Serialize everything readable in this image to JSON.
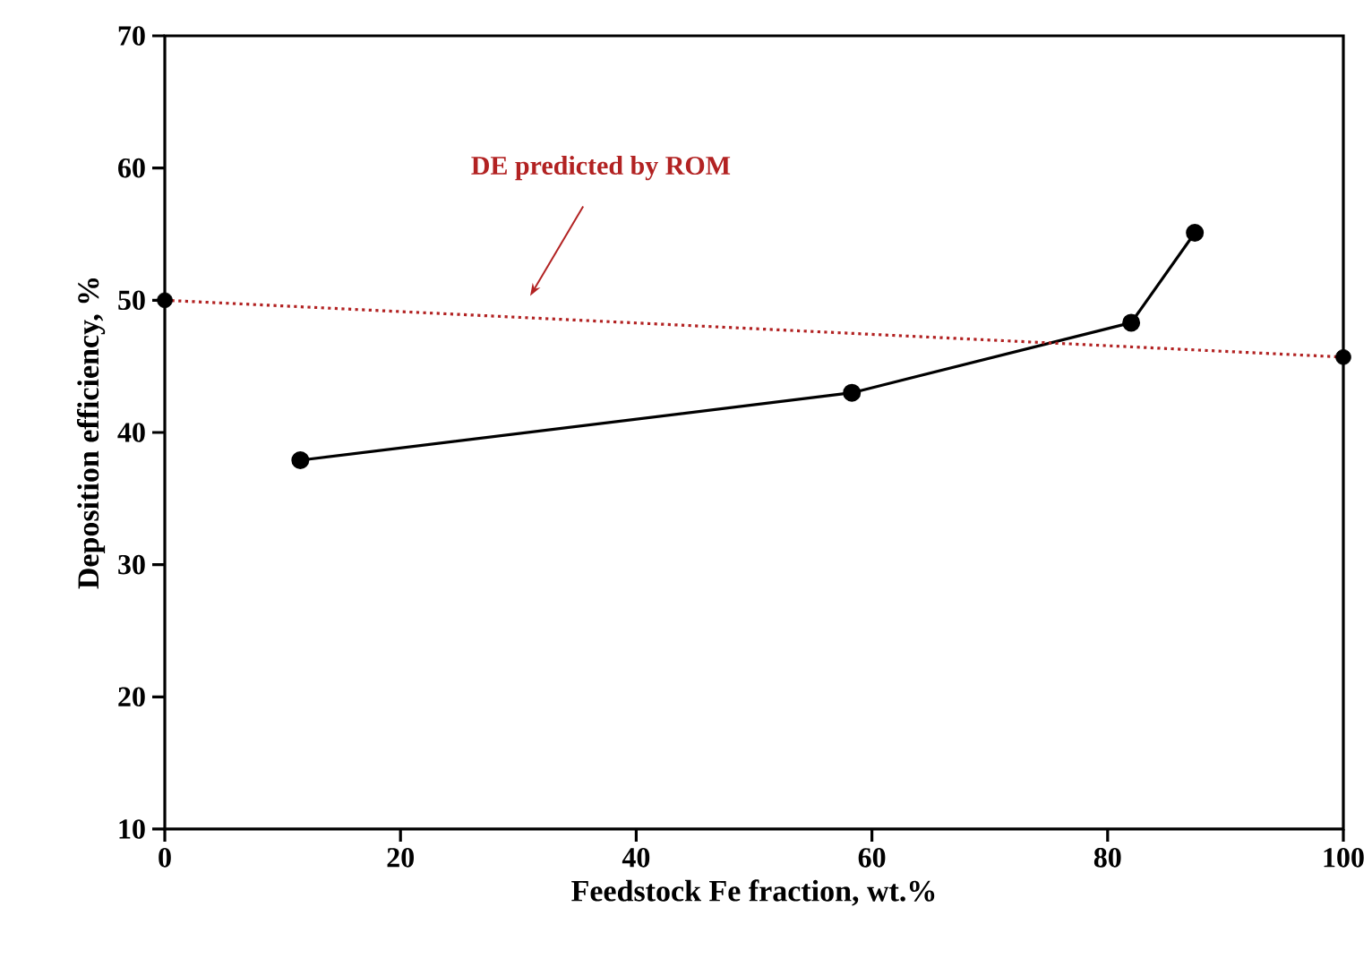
{
  "chart_data": {
    "type": "line",
    "xlabel": "Feedstock Fe fraction, wt.%",
    "ylabel": "Deposition efficiency, %",
    "xlim": [
      0,
      100
    ],
    "ylim": [
      10,
      70
    ],
    "xticks": [
      0,
      20,
      40,
      60,
      80,
      100
    ],
    "yticks": [
      10,
      20,
      30,
      40,
      50,
      60,
      70
    ],
    "grid": false,
    "series": [
      {
        "color": "#000000",
        "marker": "circle",
        "line_style": "solid",
        "x": [
          11.5,
          58.3,
          82.0,
          87.4
        ],
        "values": [
          37.9,
          43.0,
          48.3,
          55.1
        ]
      },
      {
        "color": "#b22222",
        "marker": "none",
        "line_style": "dotted",
        "x": [
          0,
          100
        ],
        "values": [
          50,
          45.7
        ]
      },
      {
        "type": "scatter",
        "color": "#000000",
        "marker": "circle",
        "x": [
          0,
          100
        ],
        "values": [
          50,
          45.7
        ]
      }
    ],
    "annotations": [
      "DE predicted by ROM"
    ]
  }
}
